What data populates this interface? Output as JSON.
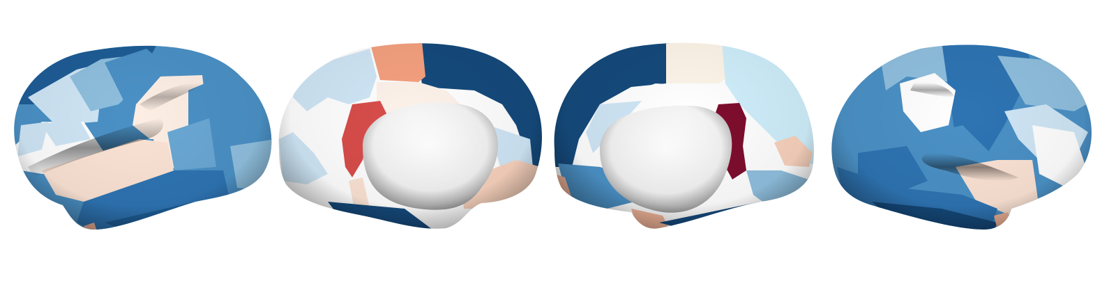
{
  "figure": {
    "views": [
      {
        "name": "left-lateral"
      },
      {
        "name": "left-medial"
      },
      {
        "name": "right-medial"
      },
      {
        "name": "right-lateral"
      }
    ]
  },
  "colors": {
    "background": "#ffffff",
    "dark_blue": "#154a7c",
    "mid_blue": "#2e74b3",
    "blue": "#4b91c6",
    "light_blue": "#8fbfde",
    "pale_blue": "#cfe6f6",
    "white": "#ffffff",
    "pale_peach": "#fbe3d4",
    "peach": "#f4b79b",
    "salmon": "#f4a07f",
    "red": "#d84d4b",
    "dark_red": "#7e0d2e"
  }
}
